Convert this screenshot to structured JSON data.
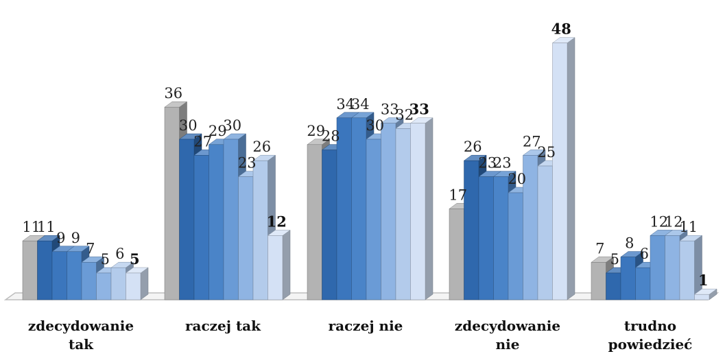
{
  "chart_data": {
    "type": "bar",
    "title": "",
    "xlabel": "",
    "ylabel": "",
    "ylim": [
      0,
      48
    ],
    "grid": false,
    "legend": "none",
    "categories": [
      [
        "zdecydowanie",
        "tak"
      ],
      [
        "raczej tak"
      ],
      [
        "raczej nie"
      ],
      [
        "zdecydowanie",
        "nie"
      ],
      [
        "trudno",
        "powiedzieć"
      ]
    ],
    "series": [
      {
        "values": [
          11,
          36,
          29,
          17,
          7
        ],
        "color": "#b3b3b3",
        "emphasis": false
      },
      {
        "values": [
          11,
          30,
          28,
          26,
          5
        ],
        "color": "#2f68ad",
        "emphasis": false
      },
      {
        "values": [
          9,
          27,
          34,
          23,
          8
        ],
        "color": "#3b76bd",
        "emphasis": false
      },
      {
        "values": [
          9,
          29,
          34,
          23,
          6
        ],
        "color": "#4a84c8",
        "emphasis": false
      },
      {
        "values": [
          7,
          30,
          30,
          20,
          12
        ],
        "color": "#6a9bd6",
        "emphasis": false
      },
      {
        "values": [
          5,
          23,
          33,
          27,
          12
        ],
        "color": "#8fb4e3",
        "emphasis": false
      },
      {
        "values": [
          6,
          26,
          32,
          25,
          11
        ],
        "color": "#b3cbeb",
        "emphasis": false
      },
      {
        "values": [
          5,
          12,
          33,
          48,
          1
        ],
        "color": "#d4e1f5",
        "emphasis": true
      }
    ]
  }
}
